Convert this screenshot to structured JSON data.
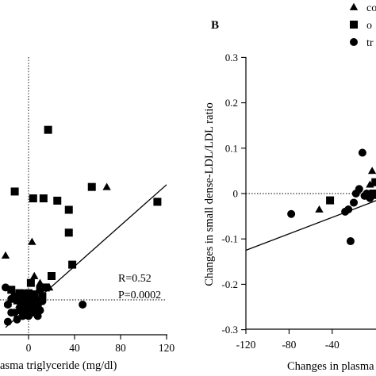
{
  "chart_data": [
    {
      "panel": "",
      "type": "scatter",
      "xlabel": "asma triglyceride (mg/dl)",
      "ylabel": "",
      "xlim": [
        -20,
        120
      ],
      "x_ticks": [
        0,
        40,
        80,
        120
      ],
      "x_tick_labels": [
        "0",
        "40",
        "80",
        "120"
      ],
      "annotations": [
        "R=0.52",
        "P=0.0002"
      ],
      "reference_lines": {
        "x": 0,
        "y_note": "dotted horizontal reference line near bottom"
      },
      "fit_line": {
        "from": [
          -20,
          5
        ],
        "to": [
          120,
          130
        ]
      },
      "series": [
        {
          "marker": "triangle",
          "points": [
            [
              -20,
              68
            ],
            [
              3,
              80
            ],
            [
              -5,
              27
            ],
            [
              -10,
              28
            ],
            [
              -2,
              27
            ],
            [
              -8,
              25
            ],
            [
              5,
              50
            ],
            [
              0,
              32
            ],
            [
              -12,
              30
            ],
            [
              10,
              30
            ],
            [
              18,
              40
            ],
            [
              10,
              44
            ],
            [
              3,
              22
            ],
            [
              68,
              128
            ],
            [
              0,
              22
            ],
            [
              -18,
              26
            ],
            [
              7,
              22
            ]
          ]
        },
        {
          "marker": "square",
          "points": [
            [
              -12,
              124
            ],
            [
              17,
              178
            ],
            [
              -15,
              38
            ],
            [
              4,
              118
            ],
            [
              13,
              118
            ],
            [
              35,
              108
            ],
            [
              25,
              116
            ],
            [
              35,
              88
            ],
            [
              38,
              60
            ],
            [
              -5,
              29
            ],
            [
              55,
              128
            ],
            [
              -1,
              22
            ],
            [
              0,
              35
            ],
            [
              5,
              22
            ],
            [
              10,
              38
            ],
            [
              5,
              34
            ],
            [
              8,
              25
            ],
            [
              15,
              40
            ],
            [
              -12,
              32
            ],
            [
              2,
              25
            ],
            [
              12,
              32
            ],
            [
              20,
              50
            ],
            [
              -3,
              25
            ],
            [
              8,
              28
            ],
            [
              112,
              115
            ],
            [
              5,
              30
            ],
            [
              0,
              28
            ],
            [
              -8,
              35
            ],
            [
              2,
              44
            ]
          ]
        },
        {
          "marker": "circle",
          "points": [
            [
              -20,
              40
            ],
            [
              -15,
              30
            ],
            [
              -8,
              20
            ],
            [
              -5,
              15
            ],
            [
              -18,
              10
            ],
            [
              -10,
              12
            ],
            [
              -3,
              18
            ],
            [
              0,
              25
            ],
            [
              5,
              18
            ],
            [
              2,
              28
            ],
            [
              10,
              20
            ],
            [
              -15,
              18
            ],
            [
              8,
              15
            ],
            [
              -5,
              22
            ],
            [
              47,
              25
            ],
            [
              -12,
              18
            ],
            [
              3,
              24
            ],
            [
              -8,
              28
            ],
            [
              0,
              15
            ],
            [
              -18,
              25
            ],
            [
              6,
              22
            ],
            [
              0,
              30
            ],
            [
              12,
              28
            ],
            [
              -5,
              35
            ],
            [
              -14,
              30
            ],
            [
              4,
              18
            ]
          ]
        }
      ]
    },
    {
      "panel": "B",
      "type": "scatter",
      "xlabel": "Changes in plasma",
      "ylabel": "Changes in small dense-LDL/LDL ratio",
      "xlim": [
        -120,
        40
      ],
      "ylim": [
        -0.3,
        0.3
      ],
      "x_ticks": [
        -120,
        -80,
        -40
      ],
      "x_tick_labels": [
        "-120",
        "-80",
        "-40"
      ],
      "y_ticks": [
        -0.3,
        -0.2,
        -0.1,
        0,
        0.1,
        0.2,
        0.3
      ],
      "y_tick_labels": [
        "-0.3",
        "-0.2",
        "-0.1",
        "0",
        "0.1",
        "0.2",
        "0.3"
      ],
      "reference_lines": {
        "y": 0
      },
      "fit_line": {
        "from": [
          -120,
          -0.125
        ],
        "to": [
          40,
          0.02
        ]
      },
      "legend": {
        "position": "top-right",
        "entries": [
          {
            "marker": "triangle",
            "label": "co"
          },
          {
            "marker": "square",
            "label": "o"
          },
          {
            "marker": "circle",
            "label": "tr"
          }
        ]
      },
      "series": [
        {
          "marker": "triangle",
          "points": [
            [
              -52,
              -0.035
            ],
            [
              -3,
              0.05
            ],
            [
              5,
              -0.025
            ],
            [
              -2,
              -0.005
            ],
            [
              10,
              -0.01
            ],
            [
              -5,
              0.02
            ],
            [
              8,
              0.005
            ]
          ]
        },
        {
          "marker": "square",
          "points": [
            [
              -42,
              -0.015
            ],
            [
              0,
              0.025
            ],
            [
              5,
              0.015
            ],
            [
              12,
              0.0
            ],
            [
              7,
              -0.01
            ],
            [
              -2,
              0.0
            ],
            [
              10,
              0.02
            ]
          ]
        },
        {
          "marker": "circle",
          "points": [
            [
              -78,
              -0.045
            ],
            [
              -23,
              -0.105
            ],
            [
              -25,
              -0.035
            ],
            [
              -28,
              -0.04
            ],
            [
              -20,
              -0.02
            ],
            [
              -12,
              0.09
            ],
            [
              -18,
              0.0
            ],
            [
              -10,
              -0.005
            ],
            [
              -8,
              0.0
            ],
            [
              -15,
              0.01
            ],
            [
              -5,
              -0.01
            ]
          ]
        }
      ]
    }
  ]
}
